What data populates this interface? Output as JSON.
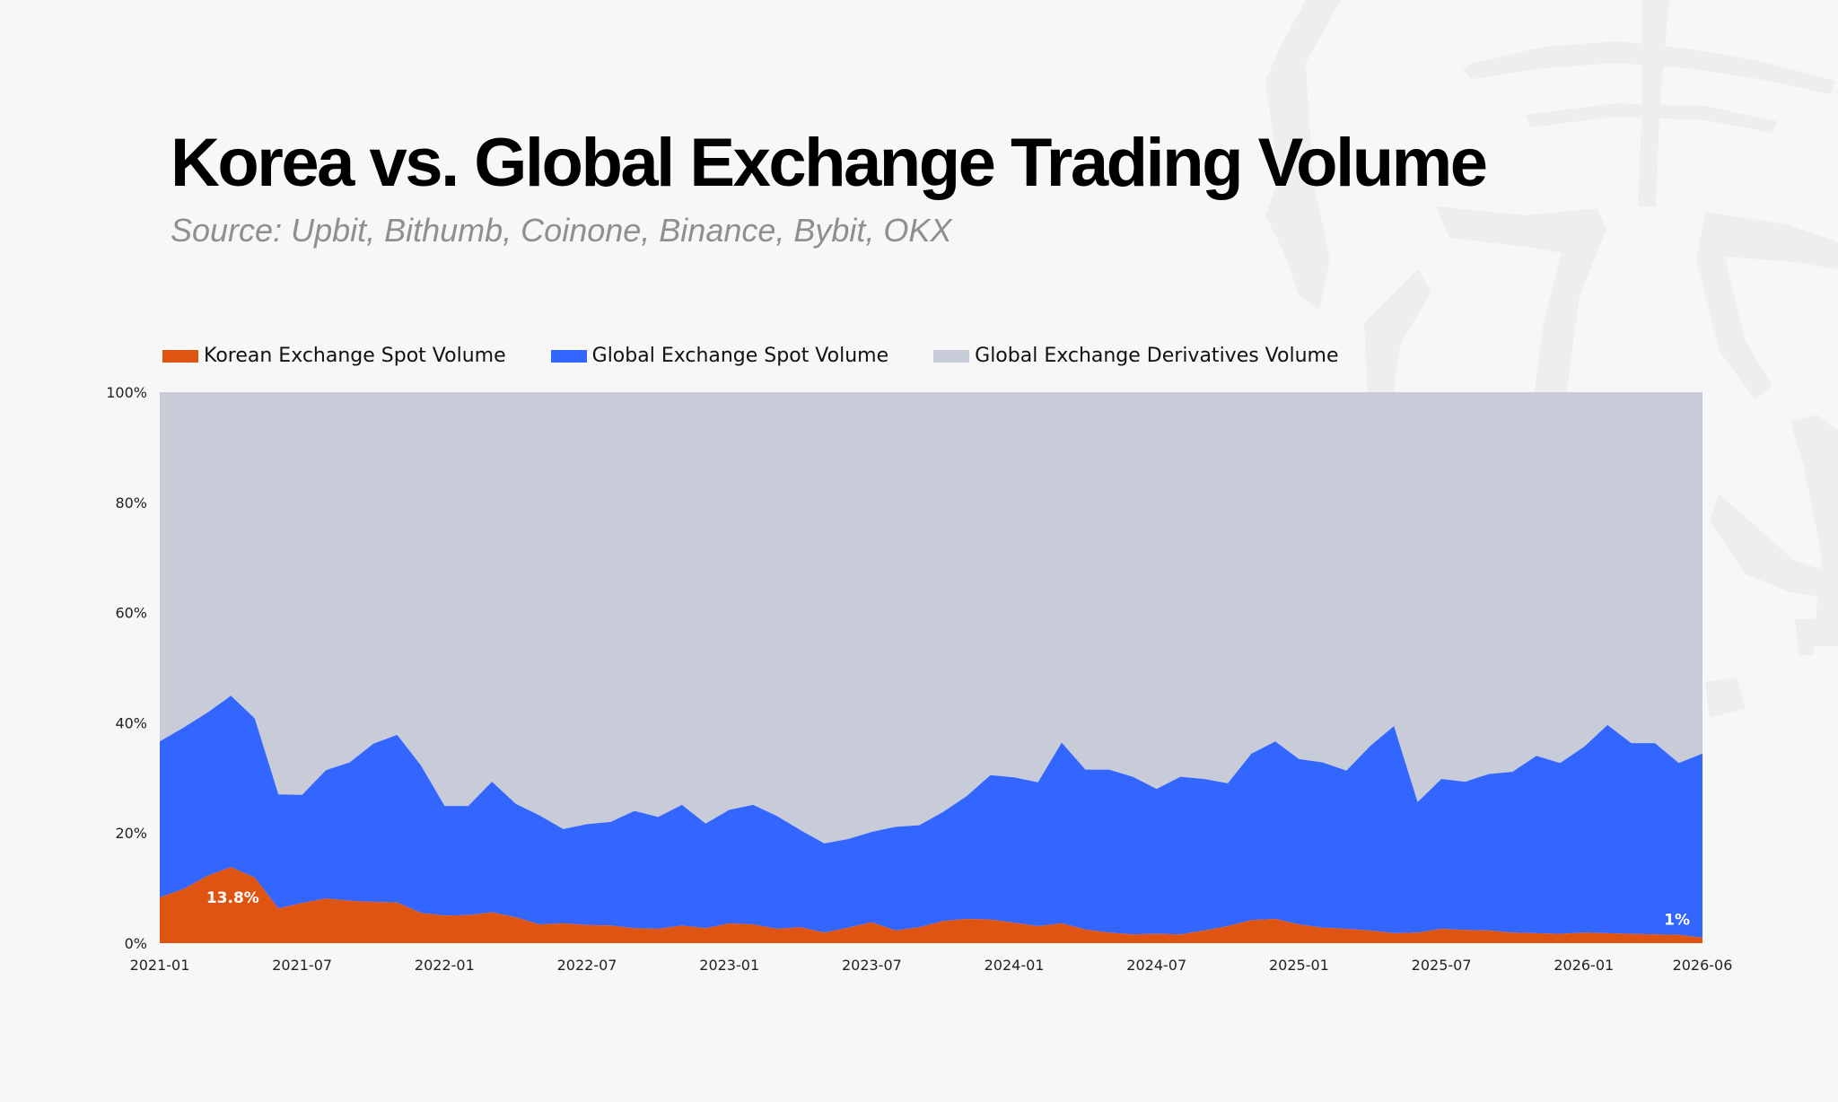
{
  "title": "Korea vs. Global Exchange Trading Volume",
  "subtitle": "Source: Upbit, Bithumb, Coinone, Binance, Bybit, OKX",
  "colors": {
    "korean_spot": "#e05412",
    "global_spot": "#3366ff",
    "global_derivatives": "#c7ccd8",
    "background": "#f7f7f7",
    "watermark": "#eeeeee"
  },
  "watermark_icon": "brand-logo-watermark",
  "chart_data": {
    "type": "area",
    "stacked": true,
    "normalized": true,
    "title": "Korea vs. Global Exchange Trading Volume",
    "subtitle": "Source: Upbit, Bithumb, Coinone, Binance, Bybit, OKX",
    "legend_position": "top-left",
    "grid": false,
    "ylim": [
      0,
      100
    ],
    "y_ticks": [
      "0%",
      "20%",
      "40%",
      "60%",
      "80%",
      "100%"
    ],
    "y_tick_values": [
      0,
      20,
      40,
      60,
      80,
      100
    ],
    "x_ticks": [
      "2021-01",
      "2021-07",
      "2022-01",
      "2022-07",
      "2023-01",
      "2023-07",
      "2024-01",
      "2024-07",
      "2025-01",
      "2025-07",
      "2026-01",
      "2026-06"
    ],
    "x": [
      "2021-01",
      "2021-02",
      "2021-03",
      "2021-04",
      "2021-05",
      "2021-06",
      "2021-07",
      "2021-08",
      "2021-09",
      "2021-10",
      "2021-11",
      "2021-12",
      "2022-01",
      "2022-02",
      "2022-03",
      "2022-04",
      "2022-05",
      "2022-06",
      "2022-07",
      "2022-08",
      "2022-09",
      "2022-10",
      "2022-11",
      "2022-12",
      "2023-01",
      "2023-02",
      "2023-03",
      "2023-04",
      "2023-05",
      "2023-06",
      "2023-07",
      "2023-08",
      "2023-09",
      "2023-10",
      "2023-11",
      "2023-12",
      "2024-01",
      "2024-02",
      "2024-03",
      "2024-04",
      "2024-05",
      "2024-06",
      "2024-07",
      "2024-08",
      "2024-09",
      "2024-10",
      "2024-11",
      "2024-12",
      "2025-01",
      "2025-02",
      "2025-03",
      "2025-04",
      "2025-05",
      "2025-06",
      "2025-07",
      "2025-08",
      "2025-09",
      "2025-10",
      "2025-11",
      "2025-12",
      "2026-01",
      "2026-02",
      "2026-03",
      "2026-04",
      "2026-05",
      "2026-06"
    ],
    "series": [
      {
        "name": "Korean Exchange Spot Volume",
        "color": "#e05412",
        "values": [
          8.3,
          9.8,
          12.2,
          13.8,
          11.9,
          6.3,
          7.3,
          8.1,
          7.7,
          7.5,
          7.4,
          5.5,
          5.0,
          5.1,
          5.6,
          4.7,
          3.4,
          3.6,
          3.3,
          3.2,
          2.7,
          2.6,
          3.2,
          2.7,
          3.6,
          3.4,
          2.6,
          2.9,
          1.9,
          2.8,
          3.8,
          2.3,
          2.9,
          4.0,
          4.4,
          4.3,
          3.7,
          3.1,
          3.6,
          2.5,
          1.9,
          1.6,
          1.7,
          1.6,
          2.3,
          3.1,
          4.2,
          4.4,
          3.4,
          2.8,
          2.6,
          2.3,
          1.8,
          1.9,
          2.6,
          2.4,
          2.3,
          1.9,
          1.8,
          1.7,
          1.9,
          1.8,
          1.7,
          1.6,
          1.5,
          1.0
        ]
      },
      {
        "name": "Global Exchange Spot Volume",
        "color": "#3366ff",
        "values": [
          28.3,
          29.3,
          29.6,
          31.1,
          28.9,
          20.7,
          19.6,
          23.3,
          25.1,
          28.7,
          30.4,
          26.8,
          19.9,
          19.8,
          23.7,
          20.6,
          19.8,
          17.1,
          18.3,
          18.8,
          21.3,
          20.3,
          21.9,
          19.0,
          20.6,
          21.7,
          20.5,
          17.6,
          16.2,
          16.1,
          16.4,
          18.8,
          18.5,
          19.8,
          22.3,
          26.2,
          26.4,
          26.1,
          32.8,
          29.0,
          29.6,
          28.6,
          26.3,
          28.6,
          27.5,
          25.9,
          30.2,
          32.2,
          30.0,
          30.0,
          28.7,
          33.5,
          37.6,
          23.7,
          27.2,
          26.9,
          28.4,
          29.2,
          32.2,
          31.0,
          33.7,
          37.8,
          34.6,
          34.7,
          31.2,
          33.4
        ]
      },
      {
        "name": "Global Exchange Derivatives Volume",
        "color": "#c7ccd8",
        "values": [
          63.4,
          60.9,
          58.2,
          55.1,
          59.2,
          73.0,
          73.1,
          68.6,
          67.2,
          63.8,
          62.2,
          67.7,
          75.1,
          75.1,
          70.7,
          74.7,
          76.8,
          79.3,
          78.4,
          78.0,
          76.0,
          77.1,
          74.9,
          78.3,
          75.8,
          74.9,
          76.9,
          79.5,
          81.9,
          81.1,
          79.8,
          78.9,
          78.6,
          76.2,
          73.3,
          69.5,
          69.9,
          70.8,
          63.6,
          68.5,
          68.5,
          69.8,
          72.0,
          69.8,
          70.2,
          71.0,
          65.6,
          63.4,
          66.6,
          67.2,
          68.7,
          64.2,
          60.6,
          74.4,
          70.2,
          70.7,
          69.3,
          68.9,
          66.0,
          67.3,
          64.4,
          60.4,
          63.7,
          63.7,
          67.3,
          65.6
        ]
      }
    ],
    "annotations": [
      {
        "text": "13.8%",
        "series": "Korean Exchange Spot Volume",
        "x": "2021-04"
      },
      {
        "text": "1%",
        "series": "Korean Exchange Spot Volume",
        "x": "2026-06"
      }
    ]
  }
}
